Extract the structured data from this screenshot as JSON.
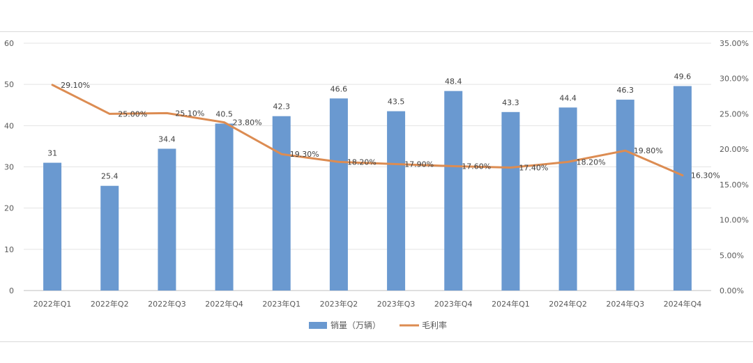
{
  "chart_data": {
    "type": "bar+line",
    "categories": [
      "2022年Q1",
      "2022年Q2",
      "2022年Q3",
      "2022年Q4",
      "2023年Q1",
      "2023年Q2",
      "2023年Q3",
      "2023年Q4",
      "2024年Q1",
      "2024年Q2",
      "2024年Q3",
      "2024年Q4"
    ],
    "series": [
      {
        "name": "销量（万辆）",
        "type": "bar",
        "axis": "left",
        "color": "#6a99d0",
        "values": [
          31,
          25.4,
          34.4,
          40.5,
          42.3,
          46.6,
          43.5,
          48.4,
          43.3,
          44.4,
          46.3,
          49.6
        ],
        "labels": [
          "31",
          "25.4",
          "34.4",
          "40.5",
          "42.3",
          "46.6",
          "43.5",
          "48.4",
          "43.3",
          "44.4",
          "46.3",
          "49.6"
        ]
      },
      {
        "name": "毛利率",
        "type": "line",
        "axis": "right",
        "color": "#dc8c52",
        "values": [
          29.1,
          25.0,
          25.1,
          23.8,
          19.3,
          18.2,
          17.9,
          17.6,
          17.4,
          18.2,
          19.8,
          16.3
        ],
        "labels": [
          "29.10%",
          "25.00%",
          "25.10%",
          "23.80%",
          "19.30%",
          "18.20%",
          "17.90%",
          "17.60%",
          "17.40%",
          "18.20%",
          "19.80%",
          "16.30%"
        ]
      }
    ],
    "y_left": {
      "min": 0,
      "max": 60,
      "ticks": [
        "0",
        "10",
        "20",
        "30",
        "40",
        "50",
        "60"
      ]
    },
    "y_right": {
      "min": 0,
      "max": 35,
      "ticks": [
        "0.00%",
        "5.00%",
        "10.00%",
        "15.00%",
        "20.00%",
        "25.00%",
        "30.00%",
        "35.00%"
      ]
    },
    "grid": true,
    "legend_position": "bottom"
  }
}
